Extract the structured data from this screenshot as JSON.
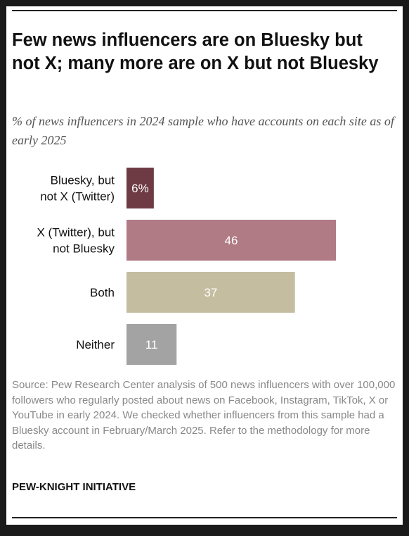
{
  "chart_data": {
    "type": "bar",
    "orientation": "horizontal",
    "title": "Few news influencers are on Bluesky but not X; many more are on X but not Bluesky",
    "subtitle": "% of news influencers in 2024 sample who have accounts on each site as of early 2025",
    "categories": [
      [
        "Bluesky, but",
        "not X (Twitter)"
      ],
      [
        "X (Twitter), but",
        "not Bluesky"
      ],
      [
        "Both"
      ],
      [
        "Neither"
      ]
    ],
    "values": [
      6,
      46,
      37,
      11
    ],
    "value_labels": [
      "6%",
      "46",
      "37",
      "11"
    ],
    "colors": [
      "#6e3b44",
      "#b07b84",
      "#c5bd9f",
      "#a3a3a3"
    ],
    "xlim": [
      0,
      46
    ],
    "grid": false,
    "legend": "none"
  },
  "source": "Source: Pew Research Center analysis of 500 news influencers with over 100,000 followers who regularly posted about news on Facebook, Instagram, TikTok, X or YouTube in early 2024. We checked whether influencers from this sample had a Bluesky account in February/March 2025. Refer to the methodology for more details.",
  "organization": "PEW-KNIGHT INITIATIVE"
}
